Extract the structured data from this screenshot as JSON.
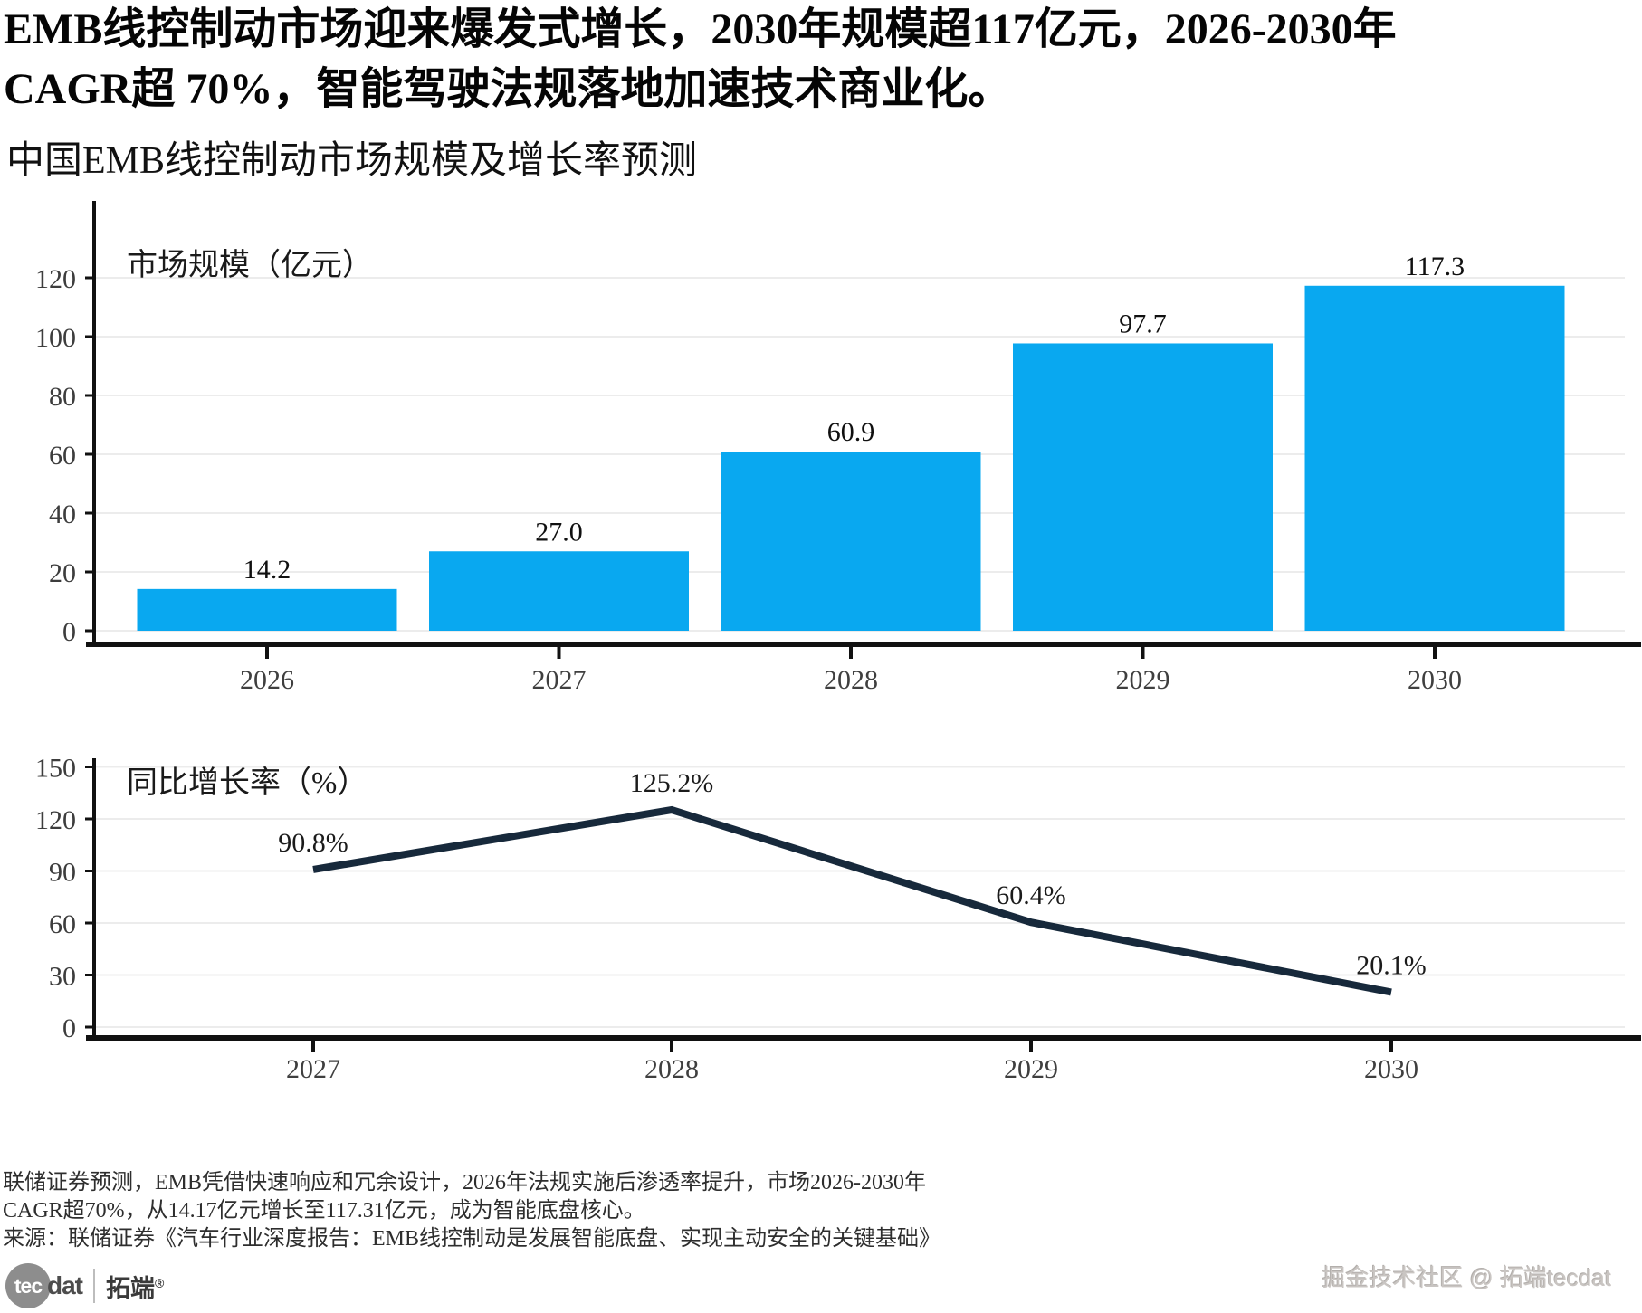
{
  "header": {
    "title_lines": [
      "EMB线控制动市场迎来爆发式增长，2030年规模超117亿元，2026-2030年",
      "CAGR超 70%，智能驾驶法规落地加速技术商业化。"
    ],
    "subtitle": "中国EMB线控制动市场规模及增长率预测"
  },
  "chart_data": [
    {
      "type": "bar",
      "title": "市场规模（亿元）",
      "categories": [
        "2026",
        "2027",
        "2028",
        "2029",
        "2030"
      ],
      "values": [
        14.2,
        27.0,
        60.9,
        97.7,
        117.3
      ],
      "value_labels": [
        "14.2",
        "27.0",
        "60.9",
        "97.7",
        "117.3"
      ],
      "ylim": [
        0,
        140
      ],
      "yticks": [
        0,
        20,
        40,
        60,
        80,
        100,
        120
      ],
      "grid": true,
      "legend": "none",
      "bar_color": "#09A8F0"
    },
    {
      "type": "line",
      "title": "同比增长率（%）",
      "categories": [
        "2027",
        "2028",
        "2029",
        "2030"
      ],
      "values": [
        90.8,
        125.2,
        60.4,
        20.1
      ],
      "value_labels": [
        "90.8%",
        "125.2%",
        "60.4%",
        "20.1%"
      ],
      "ylim": [
        0,
        160
      ],
      "yticks": [
        0,
        30,
        60,
        90,
        120,
        150
      ],
      "grid": true,
      "legend": "none",
      "line_color": "#17293B"
    }
  ],
  "footer": {
    "lines": [
      "联储证券预测，EMB凭借快速响应和冗余设计，2026年法规实施后渗透率提升，市场2026-2030年",
      "CAGR超70%，从14.17亿元增长至117.31亿元，成为智能底盘核心。",
      "来源：联储证券《汽车行业深度报告：EMB线控制动是发展智能底盘、实现主动安全的关键基础》"
    ]
  },
  "branding": {
    "logo_tec": "tec",
    "logo_dat": "dat",
    "logo_cn": "拓端",
    "logo_reg": "®",
    "watermark": "掘金技术社区 @ 拓端tecdat"
  },
  "colors": {
    "bar": "#09A8F0",
    "line": "#17293B",
    "grid": "#ececec",
    "axis": "#111111"
  }
}
